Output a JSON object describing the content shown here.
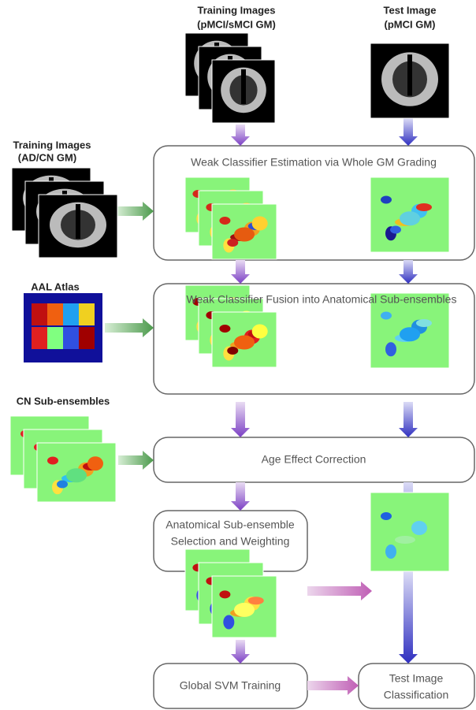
{
  "inputs": {
    "training_pmci": {
      "title": "Training Images",
      "subtitle": "(pMCI/sMCI GM)"
    },
    "test": {
      "title": "Test Image",
      "subtitle": "(pMCI GM)"
    },
    "training_ad": {
      "title": "Training Images",
      "subtitle": "(AD/CN GM)"
    },
    "atlas": {
      "title": "AAL Atlas"
    },
    "cn": {
      "title": "CN Sub-ensembles"
    }
  },
  "stages": {
    "estimation": {
      "title": "Weak Classifier Estimation via Whole GM Grading"
    },
    "fusion": {
      "title": "Weak Classifier Fusion into Anatomical Sub-ensembles"
    },
    "age": {
      "title": "Age Effect Correction"
    },
    "selection": {
      "lines": [
        "Anatomical Sub-ensemble",
        "Selection and Weighting"
      ]
    },
    "svm": {
      "title": "Global SVM Training"
    },
    "classification": {
      "lines": [
        "Test Image",
        "Classification"
      ]
    }
  }
}
